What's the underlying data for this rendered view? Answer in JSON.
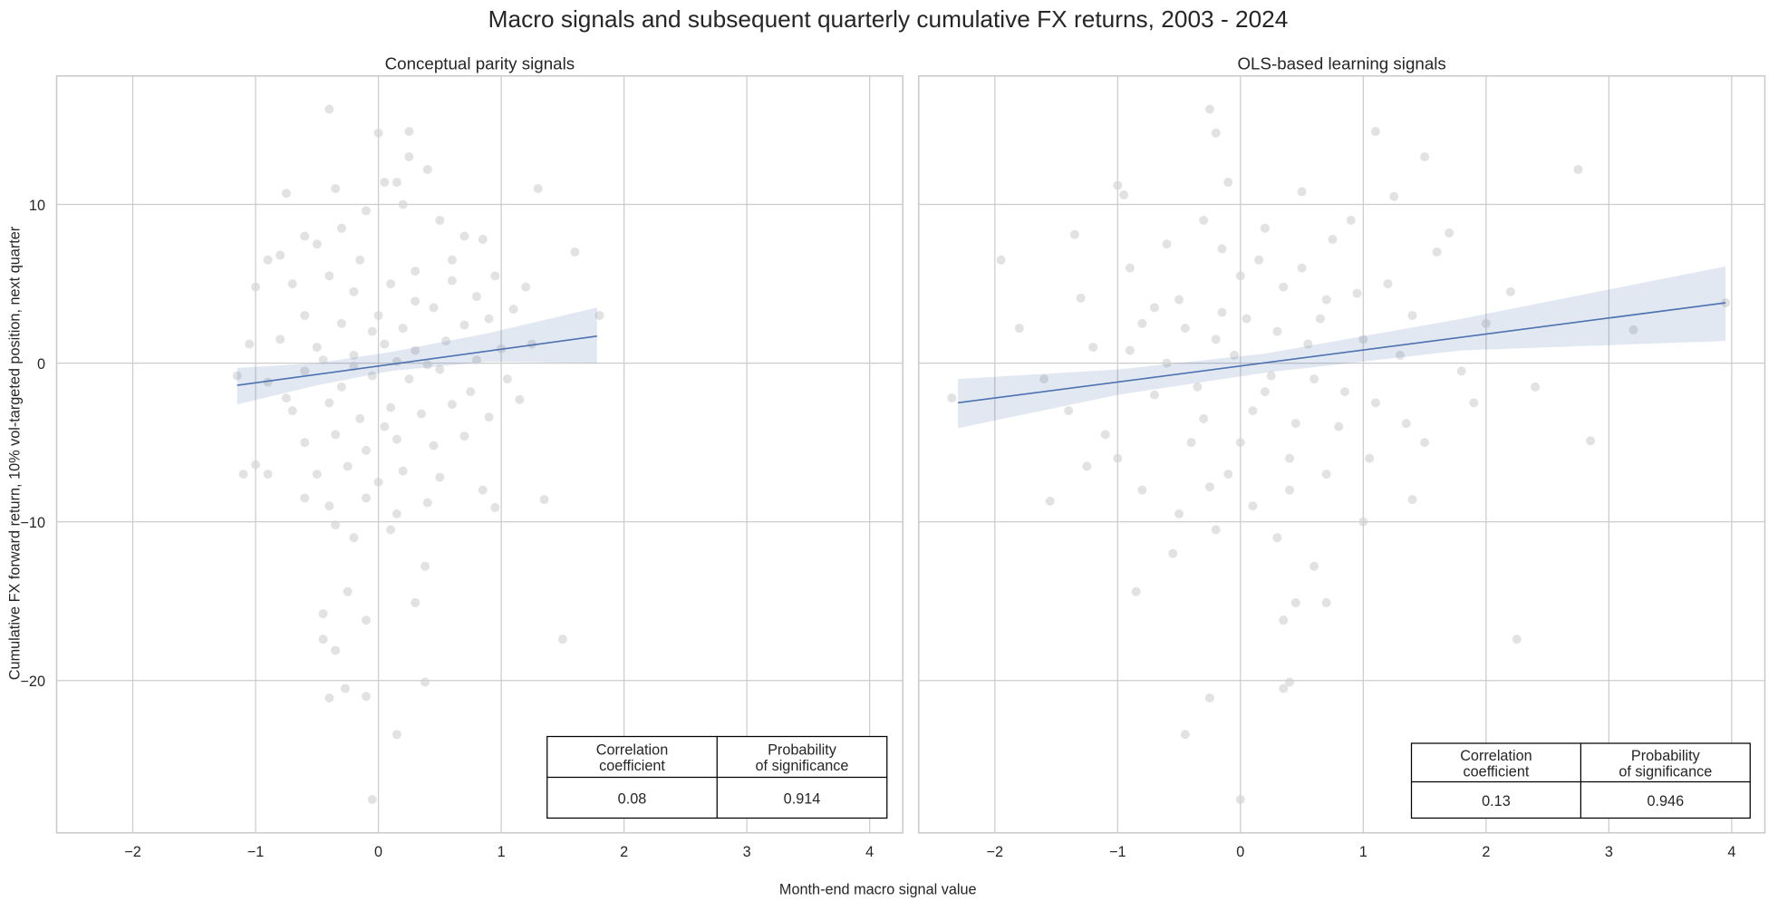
{
  "title": "Macro signals and subsequent quarterly cumulative FX returns, 2003 - 2024",
  "xlabel": "Month-end macro signal value",
  "ylabel": "Cumulative FX forward return, 10% vol-targeted position, next quarter",
  "colors": {
    "points": "#d3d3d3",
    "line": "#4c72b0",
    "band": "#4c72b0",
    "grid": "#cccccc",
    "frame": "#cccccc"
  },
  "chart_data": [
    {
      "type": "scatter",
      "title": "Conceptual parity signals",
      "xlim": [
        -2.62,
        4.27
      ],
      "ylim": [
        -29.6,
        18.1
      ],
      "xticks": [
        -2,
        -1,
        0,
        1,
        2,
        3,
        4
      ],
      "yticks": [
        10,
        0,
        -10,
        -20
      ],
      "grid": true,
      "regression": {
        "x": [
          -1.15,
          1.78
        ],
        "y": [
          -1.4,
          1.7
        ]
      },
      "ci_band": [
        [
          -1.15,
          -2.6,
          -0.3
        ],
        [
          -0.5,
          -1.4,
          0.0
        ],
        [
          0.1,
          -0.5,
          0.7
        ],
        [
          0.9,
          0.1,
          1.9
        ],
        [
          1.78,
          0.0,
          3.5
        ]
      ],
      "stats_table": {
        "headers": [
          "Correlation\ncoefficient",
          "Probability\nof significance"
        ],
        "values": [
          "0.08",
          "0.914"
        ]
      },
      "points": [
        [
          -0.4,
          16
        ],
        [
          0,
          14.5
        ],
        [
          0.25,
          14.6
        ],
        [
          0.25,
          13
        ],
        [
          0.4,
          12.2
        ],
        [
          1.3,
          11
        ],
        [
          -0.75,
          10.7
        ],
        [
          -0.35,
          11
        ],
        [
          0.05,
          11.4
        ],
        [
          0.15,
          11.4
        ],
        [
          -0.9,
          -7
        ],
        [
          -1.1,
          -7
        ],
        [
          1.35,
          -8.6
        ],
        [
          1.5,
          -17.4
        ],
        [
          1.6,
          7
        ],
        [
          1.8,
          3
        ],
        [
          -0.05,
          -27.5
        ],
        [
          0.15,
          -23.4
        ],
        [
          -0.4,
          -21.1
        ],
        [
          -0.1,
          -21
        ],
        [
          -0.27,
          -20.5
        ],
        [
          0.38,
          -20.1
        ],
        [
          -0.35,
          -18.1
        ],
        [
          -0.45,
          -17.4
        ],
        [
          -0.45,
          -15.8
        ],
        [
          -0.1,
          -16.2
        ],
        [
          0.3,
          -15.1
        ],
        [
          0.38,
          -12.8
        ],
        [
          -0.25,
          -14.4
        ],
        [
          0.95,
          -9.1
        ],
        [
          0.85,
          -8
        ],
        [
          1.15,
          -2.3
        ],
        [
          1.2,
          4.8
        ],
        [
          1.1,
          3.4
        ],
        [
          -1.15,
          -0.8
        ],
        [
          -1.0,
          -6.4
        ],
        [
          -0.8,
          6.8
        ],
        [
          -0.9,
          6.5
        ],
        [
          -1.0,
          4.8
        ],
        [
          -0.6,
          8
        ],
        [
          -0.5,
          7.5
        ],
        [
          -0.3,
          8.5
        ],
        [
          -0.1,
          9.6
        ],
        [
          0.2,
          10
        ],
        [
          0.5,
          9
        ],
        [
          0.7,
          8
        ],
        [
          0.85,
          7.8
        ],
        [
          -0.7,
          5
        ],
        [
          -0.4,
          5.5
        ],
        [
          -0.2,
          4.5
        ],
        [
          0.1,
          5
        ],
        [
          0.3,
          5.8
        ],
        [
          0.6,
          5.2
        ],
        [
          0.8,
          4.2
        ],
        [
          -0.6,
          3
        ],
        [
          -0.3,
          2.5
        ],
        [
          0,
          3
        ],
        [
          0.2,
          2.2
        ],
        [
          0.45,
          3.5
        ],
        [
          0.7,
          2.4
        ],
        [
          0.9,
          2.8
        ],
        [
          -0.8,
          1.5
        ],
        [
          -0.5,
          1
        ],
        [
          -0.2,
          0.5
        ],
        [
          0.05,
          1.2
        ],
        [
          0.3,
          0.8
        ],
        [
          0.55,
          1.4
        ],
        [
          0.8,
          0.2
        ],
        [
          1.0,
          0.9
        ],
        [
          -0.9,
          -1.2
        ],
        [
          -0.6,
          -0.5
        ],
        [
          -0.3,
          -1.5
        ],
        [
          -0.05,
          -0.8
        ],
        [
          0.25,
          -1
        ],
        [
          0.5,
          -0.4
        ],
        [
          0.75,
          -1.8
        ],
        [
          -0.7,
          -3
        ],
        [
          -0.4,
          -2.5
        ],
        [
          -0.15,
          -3.5
        ],
        [
          0.1,
          -2.8
        ],
        [
          0.35,
          -3.2
        ],
        [
          0.6,
          -2.6
        ],
        [
          0.9,
          -3.4
        ],
        [
          -0.6,
          -5
        ],
        [
          -0.35,
          -4.5
        ],
        [
          -0.1,
          -5.5
        ],
        [
          0.15,
          -4.8
        ],
        [
          0.45,
          -5.2
        ],
        [
          0.7,
          -4.6
        ],
        [
          -0.5,
          -7
        ],
        [
          -0.25,
          -6.5
        ],
        [
          0,
          -7.5
        ],
        [
          0.2,
          -6.8
        ],
        [
          0.5,
          -7.2
        ],
        [
          -0.4,
          -9
        ],
        [
          -0.1,
          -8.5
        ],
        [
          0.15,
          -9.5
        ],
        [
          0.4,
          -8.8
        ],
        [
          -0.2,
          -11
        ],
        [
          0.1,
          -10.5
        ],
        [
          -0.35,
          -10.2
        ],
        [
          -0.6,
          -8.5
        ],
        [
          0.3,
          3.9
        ],
        [
          -0.15,
          6.5
        ],
        [
          0.05,
          -4
        ],
        [
          -0.45,
          0.2
        ],
        [
          0.6,
          6.5
        ],
        [
          -0.75,
          -2.2
        ],
        [
          1.05,
          -1
        ],
        [
          0.95,
          5.5
        ],
        [
          -1.05,
          1.2
        ],
        [
          1.25,
          1.2
        ],
        [
          -0.2,
          -0.2
        ],
        [
          0.15,
          0.1
        ],
        [
          0.4,
          -0.1
        ],
        [
          -0.05,
          2
        ]
      ]
    },
    {
      "type": "scatter",
      "title": "OLS-based learning signals",
      "xlim": [
        -2.62,
        4.27
      ],
      "ylim": [
        -29.6,
        18.1
      ],
      "xticks": [
        -2,
        -1,
        0,
        1,
        2,
        3,
        4
      ],
      "yticks": [
        10,
        0,
        -10,
        -20
      ],
      "grid": true,
      "regression": {
        "x": [
          -2.3,
          3.95
        ],
        "y": [
          -2.5,
          3.8
        ]
      },
      "ci_band": [
        [
          -2.3,
          -4.1,
          -1.0
        ],
        [
          -1.0,
          -2.0,
          -0.4
        ],
        [
          0.2,
          -0.6,
          0.6
        ],
        [
          1.8,
          0.8,
          2.8
        ],
        [
          3.95,
          1.4,
          6.1
        ]
      ],
      "stats_table": {
        "headers": [
          "Correlation\ncoefficient",
          "Probability\nof significance"
        ],
        "values": [
          "0.13",
          "0.946"
        ]
      },
      "points": [
        [
          -2.35,
          -2.2
        ],
        [
          -1.95,
          6.5
        ],
        [
          -1.8,
          2.2
        ],
        [
          -1.55,
          -8.7
        ],
        [
          -1.35,
          8.1
        ],
        [
          -1.3,
          4.1
        ],
        [
          -0.85,
          -14.4
        ],
        [
          -0.25,
          16
        ],
        [
          -0.2,
          14.5
        ],
        [
          -0.1,
          11.4
        ],
        [
          -0.45,
          -23.4
        ],
        [
          -0.25,
          -21.1
        ],
        [
          0,
          -27.5
        ],
        [
          0.35,
          -20.5
        ],
        [
          0.4,
          -20.1
        ],
        [
          0.35,
          -16.2
        ],
        [
          0.45,
          -15.1
        ],
        [
          0.7,
          -15.1
        ],
        [
          2.25,
          -17.4
        ],
        [
          2.75,
          12.2
        ],
        [
          2.85,
          -4.9
        ],
        [
          3.2,
          2.1
        ],
        [
          3.95,
          3.8
        ],
        [
          1.5,
          13
        ],
        [
          1.1,
          14.6
        ],
        [
          1.0,
          -10
        ],
        [
          1.4,
          -8.6
        ],
        [
          -1.0,
          11.2
        ],
        [
          -0.95,
          10.6
        ],
        [
          -1.6,
          -1
        ],
        [
          -1.4,
          -3
        ],
        [
          -1.2,
          1
        ],
        [
          -1.1,
          -4.5
        ],
        [
          -0.9,
          6
        ],
        [
          -0.8,
          2.5
        ],
        [
          -0.7,
          -2
        ],
        [
          -0.6,
          7.5
        ],
        [
          -0.5,
          4
        ],
        [
          -0.4,
          -5
        ],
        [
          -0.3,
          9
        ],
        [
          -0.2,
          1.5
        ],
        [
          -0.1,
          -7
        ],
        [
          0,
          5.5
        ],
        [
          0.1,
          -3
        ],
        [
          0.2,
          8.5
        ],
        [
          0.3,
          2
        ],
        [
          0.4,
          -6
        ],
        [
          0.5,
          6
        ],
        [
          0.6,
          -1
        ],
        [
          0.7,
          4
        ],
        [
          0.8,
          -4
        ],
        [
          0.9,
          9
        ],
        [
          1.0,
          1.5
        ],
        [
          1.1,
          -2.5
        ],
        [
          1.2,
          5
        ],
        [
          1.3,
          0.5
        ],
        [
          1.4,
          3
        ],
        [
          1.5,
          -5
        ],
        [
          1.6,
          7
        ],
        [
          1.8,
          -0.5
        ],
        [
          2.0,
          2.5
        ],
        [
          2.2,
          4.5
        ],
        [
          2.4,
          -1.5
        ],
        [
          -0.8,
          -8
        ],
        [
          -0.5,
          -9.5
        ],
        [
          -0.2,
          -10.5
        ],
        [
          0.1,
          -9
        ],
        [
          0.4,
          -8
        ],
        [
          0.7,
          -7
        ],
        [
          -0.6,
          0
        ],
        [
          -0.35,
          -1.5
        ],
        [
          -0.05,
          0.5
        ],
        [
          0.25,
          -0.8
        ],
        [
          0.55,
          1.2
        ],
        [
          0.85,
          -1.8
        ],
        [
          -1.0,
          -6
        ],
        [
          -0.7,
          3.5
        ],
        [
          -0.15,
          3.2
        ],
        [
          0.15,
          6.5
        ],
        [
          0.45,
          -3.8
        ],
        [
          0.75,
          7.8
        ],
        [
          1.05,
          -6
        ],
        [
          1.25,
          10.5
        ],
        [
          -0.3,
          -3.5
        ],
        [
          0,
          -5
        ],
        [
          0.3,
          -11
        ],
        [
          -0.55,
          -12
        ],
        [
          0.6,
          -12.8
        ],
        [
          1.7,
          8.2
        ],
        [
          1.9,
          -2.5
        ],
        [
          -1.25,
          -6.5
        ],
        [
          -0.45,
          2.2
        ],
        [
          0.05,
          2.8
        ],
        [
          0.35,
          4.8
        ],
        [
          0.65,
          2.8
        ],
        [
          0.95,
          4.4
        ],
        [
          -0.25,
          -7.8
        ],
        [
          0.2,
          -1.8
        ],
        [
          -0.9,
          0.8
        ],
        [
          1.35,
          -3.8
        ],
        [
          0.5,
          10.8
        ],
        [
          -0.15,
          7.2
        ]
      ]
    }
  ]
}
